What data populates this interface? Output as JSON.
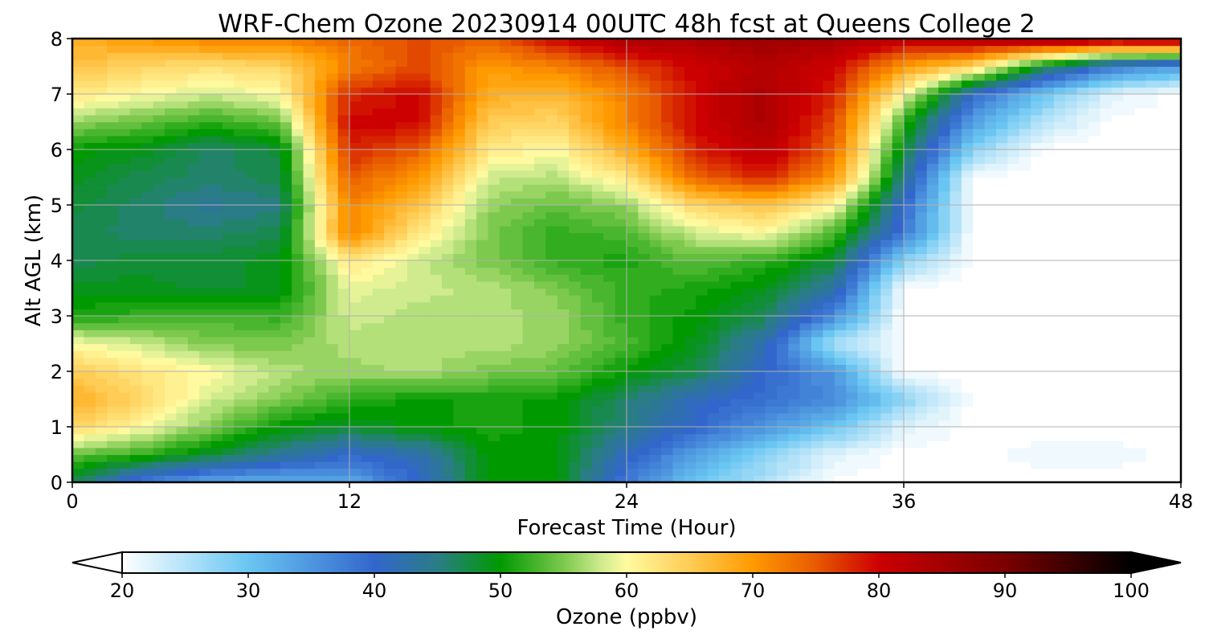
{
  "chart_data": {
    "type": "heatmap",
    "subtype": "filled-contour",
    "title": "WRF-Chem Ozone  20230914 00UTC 48h fcst at Queens College 2",
    "xlabel": "Forecast Time (Hour)",
    "ylabel": "Alt AGL (km)",
    "xlim": [
      0,
      48
    ],
    "ylim": [
      0,
      8
    ],
    "xticks": [
      0,
      12,
      24,
      36,
      48
    ],
    "yticks": [
      0,
      1,
      2,
      3,
      4,
      5,
      6,
      7,
      8
    ],
    "grid": true,
    "x": [
      0,
      3,
      6,
      9,
      12,
      15,
      18,
      21,
      24,
      27,
      30,
      33,
      36,
      39,
      42,
      45,
      48
    ],
    "y": [
      0,
      0.5,
      1,
      1.5,
      2,
      2.5,
      3,
      3.5,
      4,
      4.5,
      5,
      5.5,
      6,
      6.5,
      7,
      7.5,
      8
    ],
    "z": [
      [
        47,
        37,
        33,
        32,
        33,
        40,
        50,
        50,
        38,
        30,
        25,
        20,
        20,
        20,
        20,
        20,
        20
      ],
      [
        54,
        52,
        48,
        44,
        40,
        42,
        50,
        50,
        41,
        34,
        28,
        22,
        20,
        20,
        21,
        21,
        20
      ],
      [
        64,
        60,
        55,
        50,
        48,
        50,
        51,
        50,
        45,
        40,
        35,
        30,
        22,
        20,
        20,
        20,
        20
      ],
      [
        68,
        64,
        58,
        55,
        52,
        50,
        51,
        50,
        46,
        41,
        39,
        36,
        28,
        20,
        20,
        20,
        20
      ],
      [
        65,
        62,
        60,
        57,
        56,
        57,
        55,
        54,
        50,
        47,
        40,
        35,
        20,
        20,
        20,
        20,
        20
      ],
      [
        60,
        58,
        55,
        55,
        57,
        57,
        57,
        56,
        53,
        49,
        42,
        25,
        20,
        20,
        20,
        20,
        20
      ],
      [
        51,
        52,
        53,
        52,
        58,
        57,
        57,
        56,
        52,
        50,
        47,
        36,
        20,
        20,
        20,
        20,
        20
      ],
      [
        49,
        49,
        48,
        49,
        59,
        58,
        57,
        55,
        52,
        51,
        49,
        43,
        20,
        20,
        20,
        20,
        20
      ],
      [
        47,
        48,
        48,
        49,
        62,
        58,
        55,
        52,
        51,
        54,
        52,
        48,
        28,
        20,
        20,
        20,
        20
      ],
      [
        47,
        46,
        46,
        47,
        72,
        62,
        55,
        52,
        53,
        58,
        60,
        53,
        38,
        20,
        20,
        20,
        20
      ],
      [
        48,
        46,
        44,
        45,
        72,
        66,
        56,
        54,
        56,
        64,
        66,
        60,
        40,
        20,
        20,
        20,
        20
      ],
      [
        49,
        47,
        46,
        47,
        75,
        70,
        58,
        57,
        62,
        74,
        78,
        70,
        45,
        20,
        20,
        20,
        20
      ],
      [
        50,
        49,
        46,
        48,
        78,
        75,
        62,
        60,
        68,
        78,
        82,
        74,
        48,
        28,
        20,
        20,
        20
      ],
      [
        56,
        54,
        52,
        54,
        80,
        80,
        65,
        64,
        72,
        80,
        84,
        76,
        52,
        34,
        25,
        20,
        20
      ],
      [
        62,
        60,
        58,
        60,
        78,
        80,
        68,
        67,
        72,
        80,
        84,
        78,
        60,
        40,
        30,
        22,
        20
      ],
      [
        66,
        64,
        63,
        64,
        72,
        76,
        70,
        72,
        76,
        80,
        83,
        80,
        70,
        64,
        48,
        38,
        34
      ],
      [
        68,
        70,
        72,
        72,
        74,
        76,
        74,
        80,
        84,
        84,
        86,
        84,
        82,
        84,
        86,
        84,
        86
      ]
    ],
    "colorbar": {
      "label": "Ozone  (ppbv)",
      "min": 20,
      "max": 100,
      "ticks": [
        20,
        30,
        40,
        50,
        60,
        70,
        80,
        90,
        100
      ],
      "extend": "both",
      "stops": [
        {
          "value": 20,
          "color": "#ffffff"
        },
        {
          "value": 30,
          "color": "#69c6f2"
        },
        {
          "value": 40,
          "color": "#3266cc"
        },
        {
          "value": 45,
          "color": "#2a7d86"
        },
        {
          "value": 50,
          "color": "#009a00"
        },
        {
          "value": 55,
          "color": "#7cc94e"
        },
        {
          "value": 58,
          "color": "#cfeb8e"
        },
        {
          "value": 60,
          "color": "#fffaa0"
        },
        {
          "value": 65,
          "color": "#ffcc55"
        },
        {
          "value": 70,
          "color": "#ff9a00"
        },
        {
          "value": 75,
          "color": "#e85a00"
        },
        {
          "value": 80,
          "color": "#cc0000"
        },
        {
          "value": 90,
          "color": "#7a0000"
        },
        {
          "value": 100,
          "color": "#000000"
        }
      ]
    }
  }
}
